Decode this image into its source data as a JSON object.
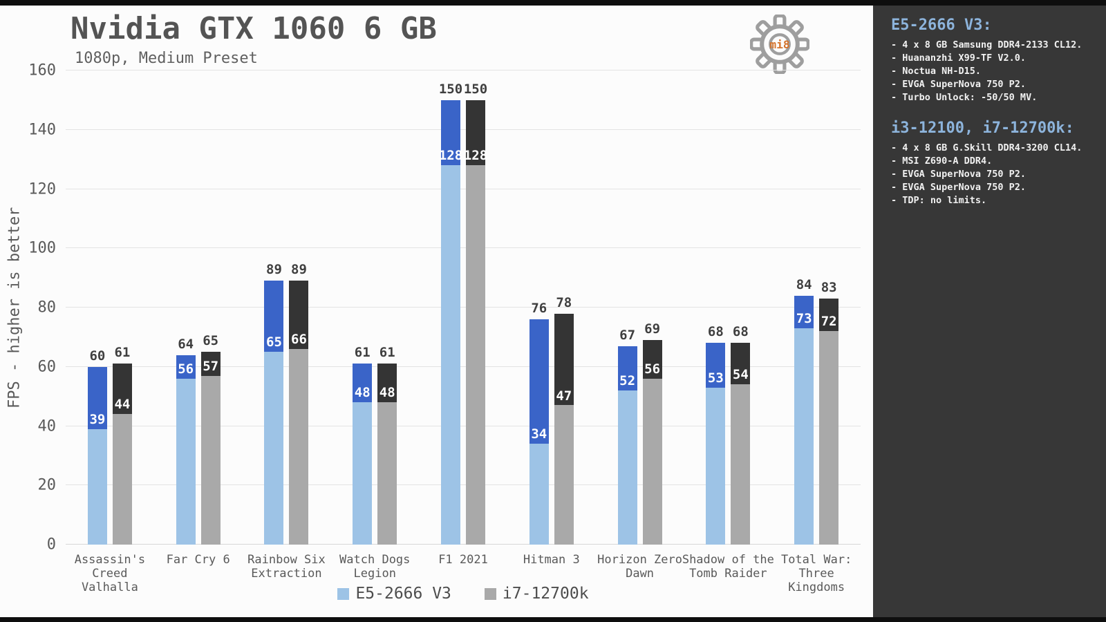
{
  "colors": {
    "strip_black": "#0e0e0e",
    "panel_bg": "#fcfcfc",
    "sidebar_bg": "#373737",
    "accent_heading": "#8DB4DC",
    "watermark_orange": "#D4732C"
  },
  "watermark": {
    "label": "mi8"
  },
  "chart_data": {
    "type": "bar",
    "title": "Nvidia GTX 1060 6 GB",
    "subtitle": "1080p, Medium Preset",
    "ylabel": "FPS - higher is better",
    "ylim": [
      0,
      160
    ],
    "ytick_step": 20,
    "grid": "horizontal",
    "legend_position": "bottom",
    "categories": [
      "Assassin's\nCreed\nValhalla",
      "Far Cry 6",
      "Rainbow Six\nExtraction",
      "Watch Dogs\nLegion",
      "F1 2021",
      "Hitman 3",
      "Horizon Zero\nDawn",
      "Shadow of the\nTomb Raider",
      "Total War:\nThree\nKingdoms"
    ],
    "series": [
      {
        "name": "E5-2666 V3",
        "color_light": "#9DC3E6",
        "color_dark": "#3A64C8",
        "values": [
          60,
          64,
          89,
          61,
          150,
          76,
          67,
          68,
          84
        ],
        "inner_values": [
          39,
          56,
          65,
          48,
          128,
          34,
          52,
          53,
          73
        ]
      },
      {
        "name": "i7-12700k",
        "color_light": "#A9A9A9",
        "color_dark": "#343434",
        "values": [
          61,
          65,
          89,
          61,
          150,
          78,
          69,
          68,
          83
        ],
        "inner_values": [
          44,
          57,
          66,
          48,
          128,
          47,
          56,
          54,
          72
        ]
      }
    ]
  },
  "specs": {
    "sections": [
      {
        "heading": "E5-2666 V3:",
        "items": [
          "- 4 x 8 GB Samsung DDR4-2133 CL12.",
          "- Huananzhi X99-TF V2.0.",
          "- Noctua NH-D15.",
          "- EVGA SuperNova 750 P2.",
          "- Turbo Unlock: -50/50 MV."
        ]
      },
      {
        "heading": "i3-12100, i7-12700k:",
        "items": [
          "- 4 x 8 GB G.Skill DDR4-3200 CL14.",
          "- MSI Z690-A DDR4.",
          "- EVGA SuperNova 750 P2.",
          "- EVGA SuperNova 750 P2.",
          "- TDP: no limits."
        ]
      }
    ]
  }
}
